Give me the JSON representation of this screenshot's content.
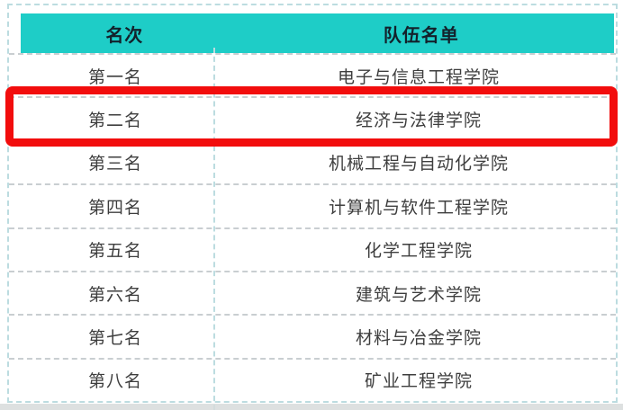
{
  "colors": {
    "header_bg": "#1ecdc7",
    "header_text": "#13212b",
    "row_text": "#3e3e3e",
    "highlight_border": "#f20d0d",
    "table_border": "#bcdce0",
    "row_separator": "#c9ced1"
  },
  "table": {
    "headers": [
      "名次",
      "队伍名单"
    ],
    "rows": [
      {
        "rank": "第一名",
        "team": "电子与信息工程学院",
        "highlighted": false
      },
      {
        "rank": "第二名",
        "team": "经济与法律学院",
        "highlighted": true
      },
      {
        "rank": "第三名",
        "team": "机械工程与自动化学院",
        "highlighted": false
      },
      {
        "rank": "第四名",
        "team": "计算机与软件工程学院",
        "highlighted": false
      },
      {
        "rank": "第五名",
        "team": "化学工程学院",
        "highlighted": false
      },
      {
        "rank": "第六名",
        "team": "建筑与艺术学院",
        "highlighted": false
      },
      {
        "rank": "第七名",
        "team": "材料与冶金学院",
        "highlighted": false
      },
      {
        "rank": "第八名",
        "team": "矿业工程学院",
        "highlighted": false
      }
    ]
  }
}
